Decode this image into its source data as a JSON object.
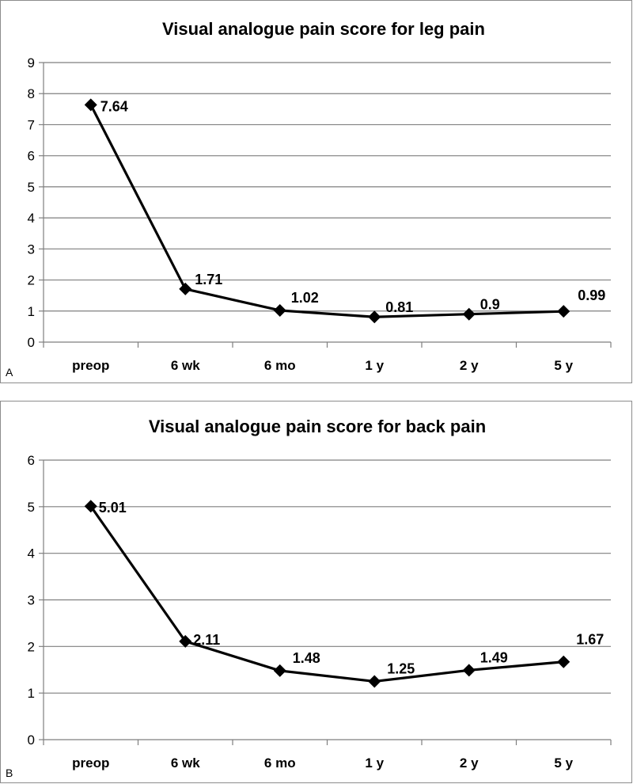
{
  "chart_data": [
    {
      "type": "line",
      "panel_label": "A",
      "title": "Visual analogue pain score for leg pain",
      "categories": [
        "preop",
        "6 wk",
        "6 mo",
        "1 y",
        "2 y",
        "5 y"
      ],
      "series": [
        {
          "values": [
            7.64,
            1.71,
            1.02,
            0.81,
            0.9,
            0.99
          ]
        }
      ],
      "data_labels": [
        "7.64",
        "1.71",
        "1.02",
        "0.81",
        "0.9",
        "0.99"
      ],
      "y_ticks": [
        "0",
        "1",
        "2",
        "3",
        "4",
        "5",
        "6",
        "7",
        "8",
        "9"
      ],
      "ylim": [
        0,
        9
      ],
      "grid": true,
      "legend": "none",
      "marker": "diamond",
      "line_color": "#000000"
    },
    {
      "type": "line",
      "panel_label": "B",
      "title": "Visual analogue pain score for back pain",
      "categories": [
        "preop",
        "6 wk",
        "6 mo",
        "1 y",
        "2 y",
        "5 y"
      ],
      "series": [
        {
          "values": [
            5.01,
            2.11,
            1.48,
            1.25,
            1.49,
            1.67
          ]
        }
      ],
      "data_labels": [
        "5.01",
        "2.11",
        "1.48",
        "1.25",
        "1.49",
        "1.67"
      ],
      "y_ticks": [
        "0",
        "1",
        "2",
        "3",
        "4",
        "5",
        "6"
      ],
      "ylim": [
        0,
        6
      ],
      "grid": true,
      "legend": "none",
      "marker": "diamond",
      "line_color": "#000000"
    }
  ]
}
